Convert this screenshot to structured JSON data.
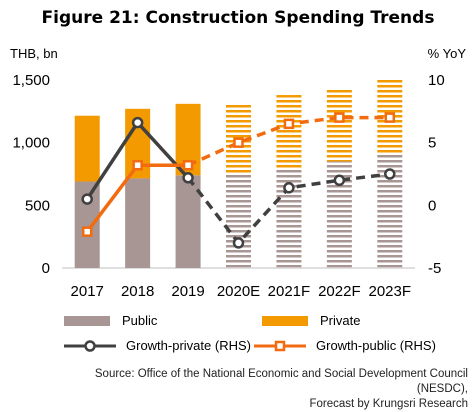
{
  "title": "Figure 21: Construction Spending Trends",
  "source_line1": "Source: Office of the National Economic and Social Development Council (NESDC),",
  "source_line2": "Forecast by Krungsri Research",
  "colors": {
    "public": "#a89694",
    "private": "#f39a00",
    "growth_private": "#404040",
    "growth_public": "#f26b0f",
    "forecast_stripe_bg": "#ffffff"
  },
  "legend": {
    "public": "Public",
    "private": "Private",
    "growth_private": "Growth-private (RHS)",
    "growth_public": "Growth-public (RHS)"
  },
  "chart_data": {
    "type": "bar",
    "stacked": true,
    "categories": [
      "2017",
      "2018",
      "2019",
      "2020E",
      "2021F",
      "2022F",
      "2023F"
    ],
    "forecast_from_index": 3,
    "left_axis": {
      "label": "THB, bn",
      "min": 0,
      "max": 1500,
      "ticks": [
        0,
        500,
        "1,000",
        "1,500"
      ],
      "tick_values": [
        0,
        500,
        1000,
        1500
      ]
    },
    "right_axis": {
      "label": "% YoY",
      "min": -5,
      "max": 10,
      "ticks": [
        -5,
        0,
        5,
        10
      ]
    },
    "series": [
      {
        "name": "Public",
        "kind": "bar",
        "axis": "left",
        "values": [
          690,
          715,
          740,
          760,
          800,
          850,
          905
        ]
      },
      {
        "name": "Private",
        "kind": "bar",
        "axis": "left",
        "values": [
          525,
          555,
          570,
          555,
          580,
          590,
          605
        ]
      },
      {
        "name": "Growth-private (RHS)",
        "kind": "line",
        "axis": "right",
        "values": [
          0.5,
          6.6,
          2.2,
          -3.0,
          1.4,
          2.0,
          2.5
        ]
      },
      {
        "name": "Growth-public (RHS)",
        "kind": "line",
        "axis": "right",
        "values": [
          -2.1,
          3.2,
          3.2,
          5.0,
          6.5,
          7.0,
          7.0
        ]
      }
    ]
  }
}
